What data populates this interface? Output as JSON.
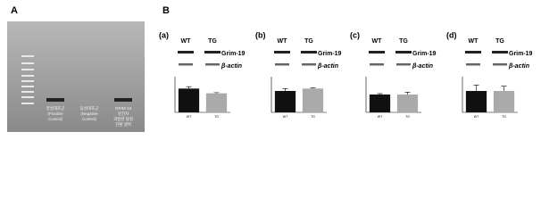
{
  "panel_a": {
    "label": "A",
    "lanes": [
      [
        "양성대조군",
        "(Positive",
        "Control)"
      ],
      [
        "음성대조군",
        "(Negative",
        "Control)"
      ],
      [
        "GRIM-19",
        "유전자",
        "과발현 형질",
        "전환 생쥐"
      ]
    ]
  },
  "panel_b": {
    "label": "B"
  },
  "chart_data": [
    {
      "type": "bar",
      "panel": "(a)",
      "blot_lanes": [
        "WT",
        "TG"
      ],
      "blot_bands": [
        "Grim-19",
        "β-actin"
      ],
      "categories": [
        "WT",
        "TG"
      ],
      "values": [
        1.0,
        0.8
      ],
      "errors": [
        0.08,
        0.03
      ],
      "colors": [
        "#111111",
        "#aaaaaa"
      ],
      "ylim": [
        0,
        1.5
      ]
    },
    {
      "type": "bar",
      "panel": "(b)",
      "blot_lanes": [
        "WT",
        "TG"
      ],
      "blot_bands": [
        "Grim-19",
        "β-actin"
      ],
      "categories": [
        "WT",
        "TG"
      ],
      "values": [
        0.9,
        1.0
      ],
      "errors": [
        0.1,
        0.03
      ],
      "colors": [
        "#111111",
        "#aaaaaa"
      ],
      "ylim": [
        0,
        1.5
      ]
    },
    {
      "type": "bar",
      "panel": "(c)",
      "blot_lanes": [
        "WT",
        "TG"
      ],
      "blot_bands": [
        "Grim-19",
        "β-actin"
      ],
      "categories": [
        "WT",
        "TG"
      ],
      "values": [
        0.75,
        0.75
      ],
      "errors": [
        0.04,
        0.1
      ],
      "colors": [
        "#111111",
        "#aaaaaa"
      ],
      "ylim": [
        0,
        1.5
      ]
    },
    {
      "type": "bar",
      "panel": "(d)",
      "blot_lanes": [
        "WT",
        "TG"
      ],
      "blot_bands": [
        "Grim-19",
        "β-actin"
      ],
      "categories": [
        "WT",
        "TG"
      ],
      "values": [
        0.9,
        0.9
      ],
      "errors": [
        0.25,
        0.2
      ],
      "colors": [
        "#111111",
        "#aaaaaa"
      ],
      "ylim": [
        0,
        1.5
      ]
    }
  ]
}
